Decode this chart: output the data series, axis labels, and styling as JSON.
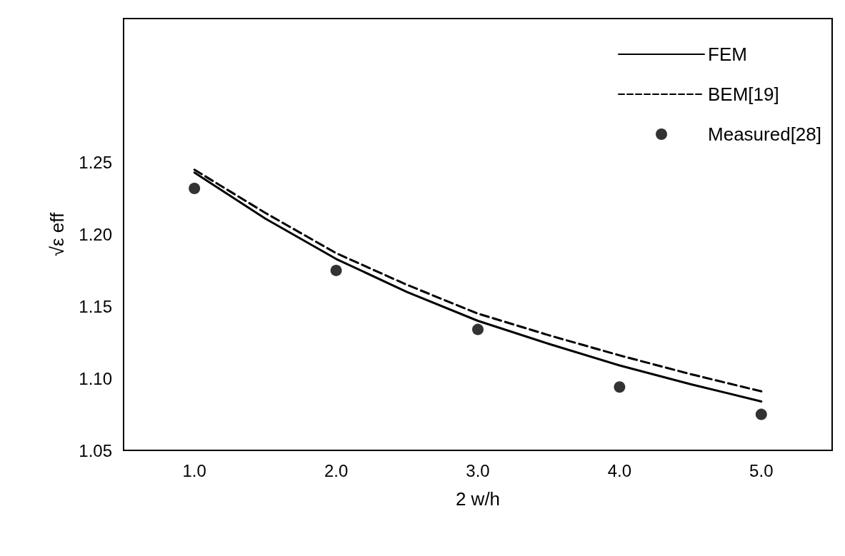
{
  "chart_data": {
    "type": "line",
    "xlabel": "2 w/h",
    "ylabel": "√ε eff",
    "xlim": [
      0.5,
      5.5
    ],
    "xticks": [
      {
        "value": 1,
        "label": "1.0"
      },
      {
        "value": 2,
        "label": "2.0"
      },
      {
        "value": 3,
        "label": "3.0"
      },
      {
        "value": 4,
        "label": "4.0"
      },
      {
        "value": 5,
        "label": "5.0"
      }
    ],
    "ylim": [
      1.05,
      1.35
    ],
    "yticks": [
      1.05,
      {
        "value": 1.1,
        "label": "1.10"
      },
      1.15,
      {
        "value": 1.2,
        "label": "1.20"
      },
      1.25
    ],
    "grid": false,
    "legend": "top right",
    "series": [
      {
        "name": "FEM",
        "line_style": "solid",
        "marker": "none",
        "color": "#000000",
        "x": [
          1,
          1.5,
          2,
          2.5,
          3,
          3.5,
          4,
          4.5,
          5
        ],
        "values": [
          1.243,
          1.211,
          1.183,
          1.16,
          1.14,
          1.124,
          1.109,
          1.096,
          1.084
        ]
      },
      {
        "name": "BEM[19]",
        "type": "line",
        "line_style": "dashed",
        "marker": "none",
        "color": "#000000",
        "x": [
          1,
          1.5,
          2,
          2.5,
          3,
          3.5,
          4,
          4.5,
          5
        ],
        "values": [
          1.245,
          1.215,
          1.187,
          1.165,
          1.145,
          1.13,
          1.116,
          1.103,
          1.091
        ]
      },
      {
        "name": "Measured[28]",
        "type": "scatter",
        "marker": "circle",
        "color": "#000000",
        "x": [
          1,
          2,
          3,
          4,
          5
        ],
        "values": [
          1.232,
          1.175,
          1.134,
          1.094,
          1.075
        ]
      }
    ]
  }
}
